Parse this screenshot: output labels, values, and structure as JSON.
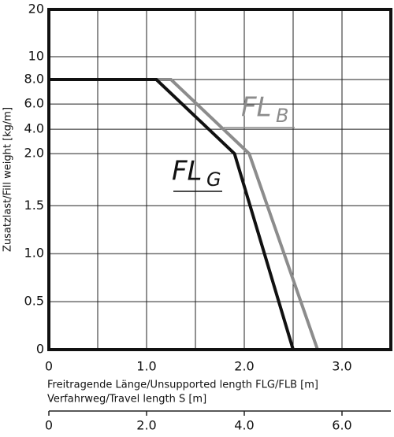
{
  "chart_data": {
    "type": "line",
    "ylabel": "Zusatzlast/Fill weight [kg/m]",
    "xlabel": "Freitragende Länge/Unsupported length FLG/FLB [m]",
    "x2label": "Verfahrweg/Travel length S [m]",
    "xlim": [
      0,
      3.5
    ],
    "xticks": [
      0,
      {
        "value": 1,
        "label": "1.0"
      },
      {
        "value": 2,
        "label": "2.0"
      },
      {
        "value": 3,
        "label": "3.0"
      }
    ],
    "xminor": [
      0.5,
      1.5,
      2.5,
      3.5
    ],
    "x2lim": [
      0,
      7
    ],
    "x2ticks": [
      0,
      {
        "value": 2,
        "label": "2.0"
      },
      {
        "value": 4,
        "label": "4.0"
      },
      {
        "value": 6,
        "label": "6.0"
      }
    ],
    "ylim": [
      0,
      20
    ],
    "yticks": [
      0,
      0.5,
      {
        "value": 1,
        "label": "1.0"
      },
      1.5,
      {
        "value": 2,
        "label": "2.0"
      },
      {
        "value": 4,
        "label": "4.0"
      },
      {
        "value": 6,
        "label": "6.0"
      },
      {
        "value": 8,
        "label": "8.0"
      },
      10,
      20
    ],
    "grid": true,
    "series": [
      {
        "name": "FL",
        "subscript": "B",
        "color": "#8c8c8c",
        "x": [
          1.1,
          1.25,
          2.05,
          2.75
        ],
        "values": [
          8,
          8,
          2,
          0
        ]
      },
      {
        "name": "FL",
        "subscript": "G",
        "color": "#111111",
        "x": [
          0,
          1.1,
          1.9,
          2.5
        ],
        "values": [
          8,
          8,
          2,
          0
        ]
      }
    ]
  }
}
